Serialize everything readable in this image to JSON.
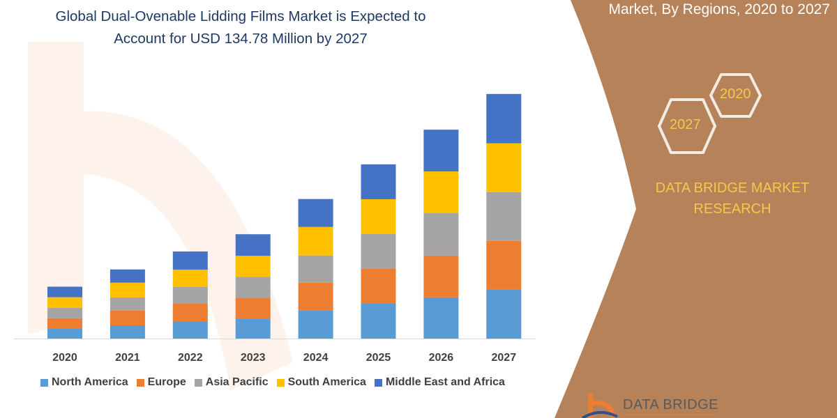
{
  "title": {
    "line1": "Global Dual-Ovenable Lidding Films Market is Expected to",
    "line2": "Account for USD 134.78 Million by 2027"
  },
  "side_panel": {
    "title": "Market, By Regions, 2020 to 2027",
    "hex_2020": "2020",
    "hex_2027": "2027",
    "brand_line1": "DATA BRIDGE MARKET",
    "brand_line2": "RESEARCH",
    "logo_text": "DATA BRIDGE",
    "panel_color": "#B5825A",
    "accent_color": "#F5C84C"
  },
  "chart_data": {
    "type": "bar",
    "stacked": true,
    "title": "",
    "xlabel": "",
    "ylabel": "",
    "y_axis_shown": false,
    "grid": false,
    "legend_position": "bottom",
    "categories": [
      "2020",
      "2021",
      "2022",
      "2023",
      "2024",
      "2025",
      "2026",
      "2027"
    ],
    "series": [
      {
        "name": "North America",
        "color": "#5B9BD5",
        "values": [
          5.4,
          7.3,
          9.6,
          11.1,
          15.4,
          19.2,
          22.7,
          26.9
        ]
      },
      {
        "name": "Europe",
        "color": "#ED7D31",
        "values": [
          5.8,
          8.1,
          9.6,
          11.5,
          15.4,
          19.2,
          23.0,
          26.9
        ]
      },
      {
        "name": "Asia Pacific",
        "color": "#A5A5A5",
        "values": [
          5.8,
          7.3,
          9.2,
          11.5,
          15.0,
          19.2,
          23.4,
          26.9
        ]
      },
      {
        "name": "South America",
        "color": "#FFC000",
        "values": [
          5.8,
          8.1,
          9.6,
          11.5,
          15.7,
          19.2,
          23.0,
          26.9
        ]
      },
      {
        "name": "Middle East and Africa",
        "color": "#4472C4",
        "values": [
          5.8,
          7.3,
          10.0,
          11.9,
          15.4,
          19.2,
          23.0,
          27.2
        ]
      }
    ]
  }
}
